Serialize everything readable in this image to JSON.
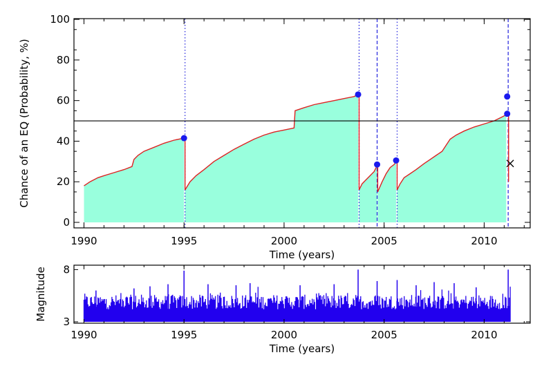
{
  "chart_data": [
    {
      "type": "area",
      "xlabel": "Time (years)",
      "ylabel": "Chance of an EQ (Probability, %)",
      "xlim": [
        1989.5,
        2012.3
      ],
      "ylim": [
        0,
        100
      ],
      "xticks": [
        1990,
        1995,
        2000,
        2005,
        2010
      ],
      "yticks": [
        0,
        20,
        40,
        60,
        80,
        100
      ],
      "fill_color": "#99ffdd",
      "line_color": "#dd2222",
      "threshold": {
        "y": 50,
        "color": "#000000"
      },
      "event_lines": [
        {
          "x": 1995.05,
          "style": "dotted"
        },
        {
          "x": 2003.75,
          "style": "dotted"
        },
        {
          "x": 2003.75,
          "style": "dotted"
        },
        {
          "x": 2004.65,
          "style": "dashed"
        },
        {
          "x": 2005.65,
          "style": "dotted"
        },
        {
          "x": 2011.2,
          "style": "dashed"
        }
      ],
      "segments": [
        [
          [
            1990.0,
            18
          ],
          [
            1990.3,
            20
          ],
          [
            1990.7,
            22
          ],
          [
            1991.0,
            23
          ],
          [
            1991.5,
            24.5
          ],
          [
            1992.0,
            26
          ],
          [
            1992.4,
            27.5
          ],
          [
            1992.5,
            31
          ],
          [
            1992.7,
            33
          ],
          [
            1993.0,
            35
          ],
          [
            1993.5,
            37
          ],
          [
            1994.0,
            39
          ],
          [
            1994.5,
            40.5
          ],
          [
            1995.0,
            41.5
          ]
        ],
        [
          [
            1995.05,
            16
          ],
          [
            1995.3,
            20
          ],
          [
            1995.6,
            23
          ],
          [
            1996.0,
            26
          ],
          [
            1996.5,
            30
          ],
          [
            1997.0,
            33
          ],
          [
            1997.5,
            36
          ],
          [
            1998.0,
            38.5
          ],
          [
            1998.5,
            41
          ],
          [
            1999.0,
            43
          ],
          [
            1999.5,
            44.5
          ],
          [
            2000.0,
            45.5
          ],
          [
            2000.5,
            46.5
          ],
          [
            2000.55,
            55
          ],
          [
            2001.0,
            56.5
          ],
          [
            2001.5,
            58
          ],
          [
            2002.0,
            59
          ],
          [
            2002.5,
            60
          ],
          [
            2003.0,
            61
          ],
          [
            2003.5,
            62
          ],
          [
            2003.7,
            63
          ]
        ],
        [
          [
            2003.75,
            16
          ],
          [
            2003.9,
            19
          ],
          [
            2004.1,
            21
          ],
          [
            2004.3,
            23
          ],
          [
            2004.5,
            25
          ],
          [
            2004.65,
            28
          ]
        ],
        [
          [
            2004.68,
            15
          ],
          [
            2004.9,
            20
          ],
          [
            2005.1,
            24
          ],
          [
            2005.3,
            27
          ],
          [
            2005.5,
            28.5
          ],
          [
            2005.6,
            30
          ]
        ],
        [
          [
            2005.65,
            16
          ],
          [
            2005.8,
            19
          ],
          [
            2006.0,
            22
          ],
          [
            2006.3,
            24
          ],
          [
            2006.6,
            26
          ],
          [
            2007.0,
            29
          ],
          [
            2007.3,
            31
          ],
          [
            2007.6,
            33
          ],
          [
            2007.9,
            35
          ],
          [
            2008.1,
            38
          ],
          [
            2008.3,
            41
          ],
          [
            2008.6,
            43
          ],
          [
            2009.0,
            45
          ],
          [
            2009.5,
            47
          ],
          [
            2010.0,
            48.5
          ],
          [
            2010.5,
            50
          ],
          [
            2010.9,
            52
          ],
          [
            2011.1,
            53
          ]
        ],
        [
          [
            2011.22,
            29
          ],
          [
            2011.22,
            20
          ]
        ]
      ],
      "markers": [
        {
          "x": 1995.0,
          "y": 41.5
        },
        {
          "x": 2003.7,
          "y": 63
        },
        {
          "x": 2004.65,
          "y": 28.5
        },
        {
          "x": 2005.6,
          "y": 30.5
        },
        {
          "x": 2011.15,
          "y": 53.5
        },
        {
          "x": 2011.15,
          "y": 62
        }
      ],
      "cross_marker": {
        "x": 2011.3,
        "y": 29
      }
    },
    {
      "type": "bar",
      "xlabel": "Time (years)",
      "ylabel": "Magnitude",
      "xlim": [
        1989.5,
        2012.3
      ],
      "ylim": [
        3,
        8
      ],
      "xticks": [
        1990,
        1995,
        2000,
        2005,
        2010
      ],
      "yticks": [
        3,
        8
      ],
      "color": "#2200ee",
      "x_start": 1990.0,
      "x_end": 2011.3,
      "typical_range": [
        4.2,
        5.6
      ],
      "peaks": [
        {
          "x": 1990.6,
          "y": 6.0
        },
        {
          "x": 1992.5,
          "y": 6.2
        },
        {
          "x": 1993.3,
          "y": 6.4
        },
        {
          "x": 1994.2,
          "y": 6.6
        },
        {
          "x": 1995.0,
          "y": 7.9
        },
        {
          "x": 1996.2,
          "y": 6.6
        },
        {
          "x": 1997.6,
          "y": 6.5
        },
        {
          "x": 1998.3,
          "y": 6.7
        },
        {
          "x": 2000.8,
          "y": 6.5
        },
        {
          "x": 2002.5,
          "y": 6.6
        },
        {
          "x": 2003.7,
          "y": 8.0
        },
        {
          "x": 2004.65,
          "y": 6.9
        },
        {
          "x": 2005.65,
          "y": 7.0
        },
        {
          "x": 2006.6,
          "y": 6.5
        },
        {
          "x": 2007.5,
          "y": 6.8
        },
        {
          "x": 2008.5,
          "y": 6.7
        },
        {
          "x": 2009.6,
          "y": 6.3
        },
        {
          "x": 2011.2,
          "y": 8.1
        }
      ]
    }
  ]
}
